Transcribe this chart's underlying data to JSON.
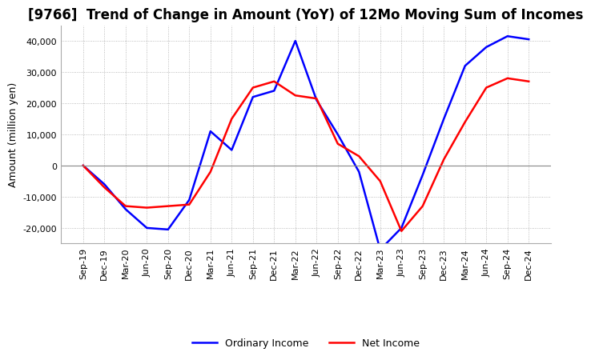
{
  "title": "[9766]  Trend of Change in Amount (YoY) of 12Mo Moving Sum of Incomes",
  "ylabel": "Amount (million yen)",
  "ylim": [
    -25000,
    45000
  ],
  "yticks": [
    -20000,
    -10000,
    0,
    10000,
    20000,
    30000,
    40000
  ],
  "x_labels": [
    "Sep-19",
    "Dec-19",
    "Mar-20",
    "Jun-20",
    "Sep-20",
    "Dec-20",
    "Mar-21",
    "Jun-21",
    "Sep-21",
    "Dec-21",
    "Mar-22",
    "Jun-22",
    "Sep-22",
    "Dec-22",
    "Mar-23",
    "Jun-23",
    "Sep-23",
    "Dec-23",
    "Mar-24",
    "Jun-24",
    "Sep-24",
    "Dec-24"
  ],
  "ordinary_income": [
    0,
    -6000,
    -14000,
    -20000,
    -20500,
    -11000,
    11000,
    5000,
    22000,
    24000,
    40000,
    21000,
    10000,
    -2000,
    -27000,
    -20000,
    -3000,
    15000,
    32000,
    38000,
    41500,
    40500
  ],
  "net_income": [
    0,
    -7000,
    -13000,
    -13500,
    -13000,
    -12500,
    -2000,
    15000,
    25000,
    27000,
    22500,
    21500,
    7000,
    3000,
    -5000,
    -21000,
    -13000,
    2000,
    14000,
    25000,
    28000,
    27000
  ],
  "ordinary_income_color": "#0000ff",
  "net_income_color": "#ff0000",
  "grid_color": "#aaaaaa",
  "zero_line_color": "#888888",
  "background_color": "#ffffff",
  "title_fontsize": 12,
  "axis_fontsize": 9,
  "tick_fontsize": 8,
  "legend_labels": [
    "Ordinary Income",
    "Net Income"
  ]
}
